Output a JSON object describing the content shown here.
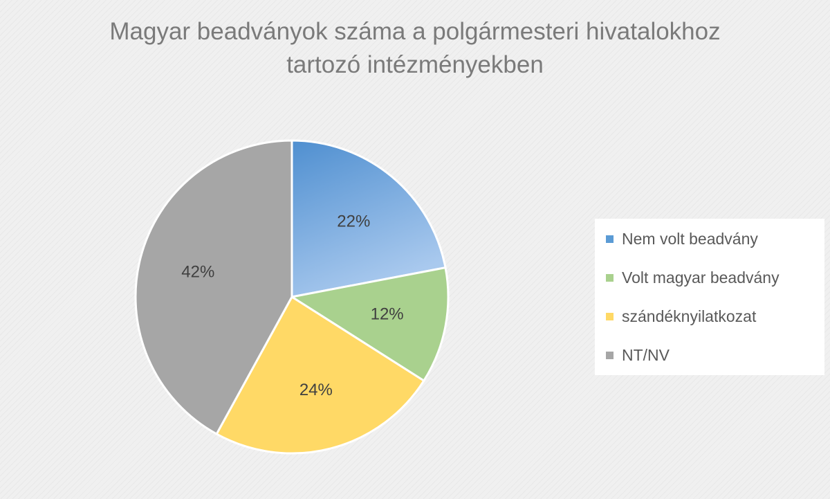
{
  "chart_data": {
    "type": "pie",
    "title": "Magyar beadványok száma a polgármesteri hivatalokhoz tartozó intézményekben",
    "title_lines": [
      "Magyar beadványok száma a polgármesteri hivatalokhoz",
      "tartozó intézményekben"
    ],
    "categories": [
      "Nem volt beadvány",
      "Volt magyar beadvány",
      "szándéknyilatkozat",
      "NT/NV"
    ],
    "values": [
      22,
      12,
      24,
      42
    ],
    "labels": [
      "22%",
      "12%",
      "24%",
      "42%"
    ],
    "colors": [
      "#5b9bd5",
      "#a9d18e",
      "#ffd966",
      "#a6a6a6"
    ],
    "legend_position": "right"
  }
}
